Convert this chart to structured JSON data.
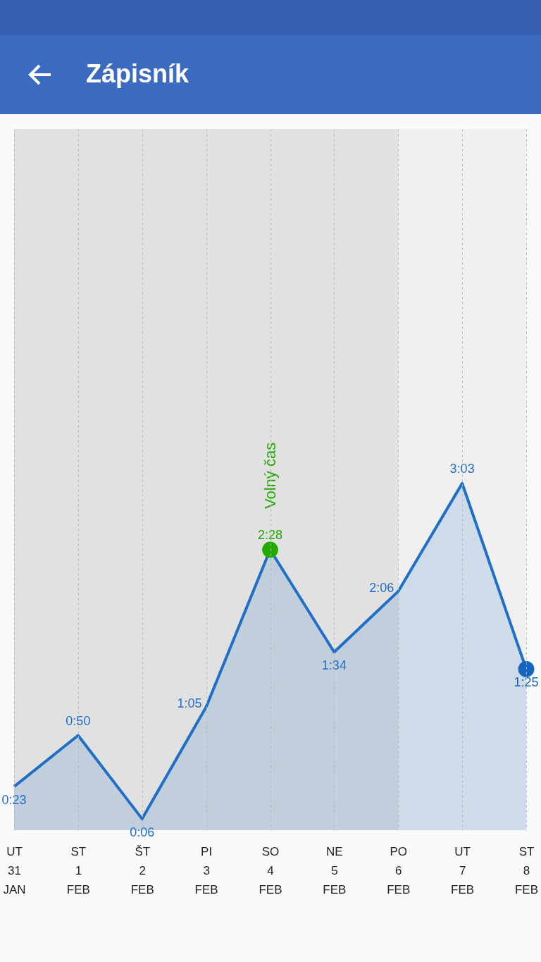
{
  "chart_data": {
    "type": "area",
    "title": "Zápisník",
    "categories": [
      "UT\n31\nJAN",
      "ST\n1\nFEB",
      "ŠT\n2\nFEB",
      "PI\n3\nFEB",
      "SO\n4\nFEB",
      "NE\n5\nFEB",
      "PO\n6\nFEB",
      "UT\n7\nFEB",
      "ST\n8\nFEB"
    ],
    "ylim": [
      0,
      370
    ],
    "grid": "x",
    "line_style": "solid",
    "series": [
      {
        "color": "#1f6fc9",
        "marker": "none",
        "values": [
          23,
          50,
          6,
          65,
          148,
          94,
          126,
          183,
          85
        ],
        "value_labels": [
          "0:23",
          "0:50",
          "0:06",
          "1:05",
          null,
          "1:34",
          "2:06",
          "3:03",
          null
        ]
      },
      {
        "type": "scatter",
        "marker": "circle",
        "values": [
          null,
          null,
          null,
          null,
          148,
          null,
          null,
          null,
          85
        ],
        "colors": [
          null,
          null,
          null,
          null,
          "#22aa00",
          null,
          null,
          null,
          "#1565c0"
        ],
        "value_labels": [
          null,
          null,
          null,
          null,
          "2:28",
          null,
          null,
          null,
          "1:25"
        ]
      }
    ],
    "bands": [
      {
        "axis": "x",
        "from": "UT\n31\nJAN",
        "to": "PO\n6\nFEB",
        "color": "#e1e1e1"
      }
    ],
    "annotations": [
      {
        "text": "Volný čas",
        "x": "SO\n4\nFEB",
        "y": 148
      }
    ]
  }
}
